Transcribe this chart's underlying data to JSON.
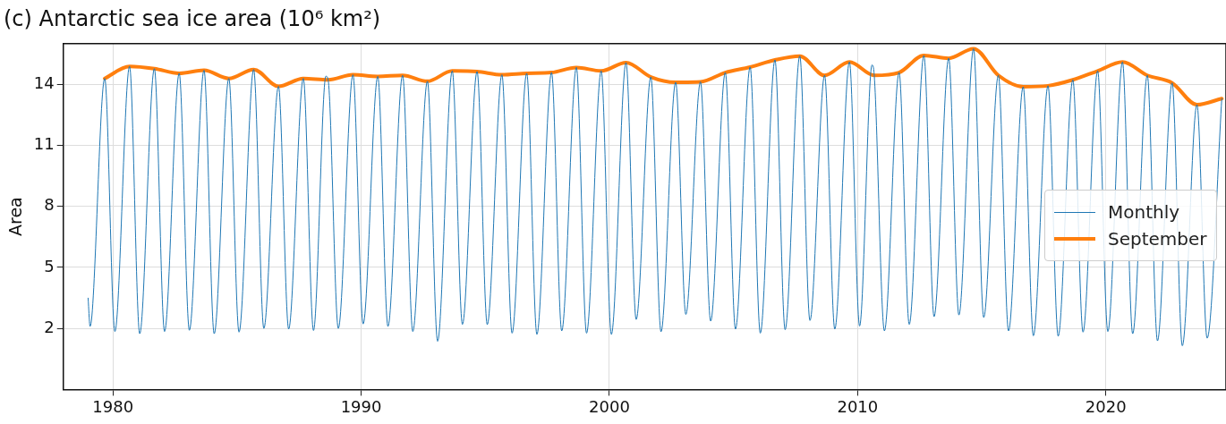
{
  "chart_data": {
    "type": "line",
    "title": "(c) Antarctic sea ice area (10⁶ km²)",
    "ylabel": "Area",
    "xlim": [
      1978,
      2024.84
    ],
    "xticks": [
      1980,
      1990,
      2000,
      2010,
      2020
    ],
    "ylim": [
      -1,
      16
    ],
    "yticks": [
      2,
      5,
      8,
      11,
      14
    ],
    "grid": true,
    "legend": "right",
    "marker": "none",
    "series": [
      {
        "name": "Monthly",
        "color": "#1f77b4",
        "x": [
          1979.0,
          1979.08,
          1979.67,
          1980.08,
          1980.67,
          1981.08,
          1981.67,
          1982.08,
          1982.67,
          1983.08,
          1983.67,
          1984.08,
          1984.67,
          1985.08,
          1985.67,
          1986.08,
          1986.67,
          1987.08,
          1987.67,
          1988.08,
          1988.58,
          1988.67,
          1989.08,
          1989.67,
          1990.08,
          1990.67,
          1991.08,
          1991.67,
          1992.08,
          1992.67,
          1993.08,
          1993.67,
          1994.08,
          1994.67,
          1995.08,
          1995.67,
          1996.08,
          1996.67,
          1997.08,
          1997.67,
          1998.08,
          1998.67,
          1999.08,
          1999.67,
          2000.08,
          2000.67,
          2001.08,
          2001.67,
          2002.08,
          2002.67,
          2003.08,
          2003.67,
          2004.08,
          2004.67,
          2005.08,
          2005.67,
          2006.08,
          2006.67,
          2007.08,
          2007.67,
          2008.08,
          2008.67,
          2009.08,
          2009.67,
          2010.08,
          2010.58,
          2010.67,
          2011.08,
          2011.67,
          2012.08,
          2012.67,
          2013.08,
          2013.67,
          2014.08,
          2014.67,
          2015.08,
          2015.67,
          2016.08,
          2016.67,
          2017.08,
          2017.67,
          2018.08,
          2018.67,
          2019.08,
          2019.67,
          2020.08,
          2020.67,
          2021.08,
          2021.67,
          2022.08,
          2022.67,
          2023.08,
          2023.67,
          2024.08,
          2024.67
        ],
        "values": [
          3.49,
          2.1,
          14.29,
          1.85,
          14.88,
          1.74,
          14.77,
          1.85,
          14.54,
          1.91,
          14.69,
          1.74,
          14.29,
          1.82,
          14.73,
          2.0,
          13.9,
          1.97,
          14.29,
          1.9,
          14.4,
          14.22,
          2.0,
          14.47,
          2.22,
          14.39,
          2.1,
          14.44,
          1.85,
          14.15,
          1.37,
          14.66,
          2.2,
          14.63,
          2.19,
          14.47,
          1.77,
          14.54,
          1.71,
          14.58,
          1.88,
          14.83,
          1.77,
          14.66,
          1.71,
          15.07,
          2.44,
          14.36,
          1.84,
          14.1,
          2.69,
          14.12,
          2.36,
          14.58,
          1.97,
          14.85,
          1.77,
          15.2,
          1.94,
          15.39,
          2.39,
          14.44,
          1.97,
          15.1,
          2.12,
          14.95,
          14.44,
          1.88,
          14.58,
          2.2,
          15.42,
          2.58,
          15.28,
          2.66,
          15.75,
          2.54,
          14.44,
          1.88,
          13.88,
          1.64,
          13.93,
          1.62,
          14.22,
          1.82,
          14.66,
          1.85,
          15.1,
          1.74,
          14.44,
          1.39,
          14.07,
          1.15,
          13.0,
          1.52,
          13.3
        ]
      },
      {
        "name": "September",
        "color": "#ff7f0e",
        "x": [
          1979.67,
          1980.67,
          1981.67,
          1982.67,
          1983.67,
          1984.67,
          1985.67,
          1986.67,
          1987.67,
          1988.67,
          1989.67,
          1990.67,
          1991.67,
          1992.67,
          1993.67,
          1994.67,
          1995.67,
          1996.67,
          1997.67,
          1998.67,
          1999.67,
          2000.67,
          2001.67,
          2002.67,
          2003.67,
          2004.67,
          2005.67,
          2006.67,
          2007.67,
          2008.67,
          2009.67,
          2010.67,
          2011.67,
          2012.67,
          2013.67,
          2014.67,
          2015.67,
          2016.67,
          2017.67,
          2018.67,
          2019.67,
          2020.67,
          2021.67,
          2022.67,
          2023.67,
          2024.67
        ],
        "values": [
          14.29,
          14.88,
          14.77,
          14.54,
          14.69,
          14.29,
          14.73,
          13.9,
          14.29,
          14.22,
          14.47,
          14.39,
          14.44,
          14.15,
          14.66,
          14.63,
          14.47,
          14.54,
          14.58,
          14.83,
          14.66,
          15.07,
          14.36,
          14.1,
          14.12,
          14.58,
          14.85,
          15.2,
          15.39,
          14.44,
          15.1,
          14.44,
          14.58,
          15.42,
          15.28,
          15.75,
          14.44,
          13.88,
          13.93,
          14.22,
          14.66,
          15.1,
          14.44,
          14.07,
          13.0,
          13.3
        ]
      }
    ]
  }
}
